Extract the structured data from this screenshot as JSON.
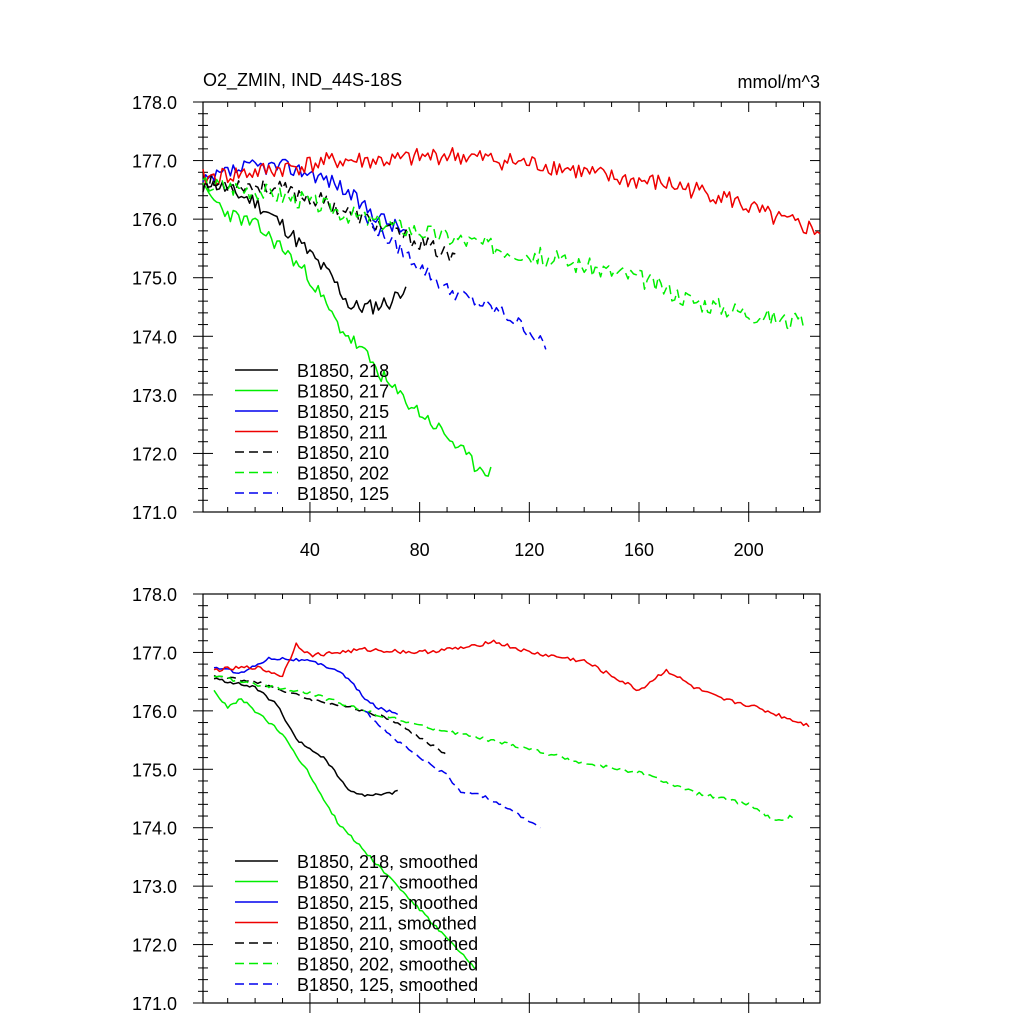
{
  "figure": {
    "title": "O2_ZMIN, IND_44S-18S",
    "units": "mmol/m^3"
  },
  "colors": {
    "black": "#000000",
    "green": "#00ee00",
    "blue": "#0000ee",
    "red": "#ee0000"
  },
  "chart_data": [
    {
      "type": "line",
      "panel": "top",
      "title": "O2_ZMIN, IND_44S-18S",
      "right_title": "mmol/m^3",
      "xlim": [
        1,
        226
      ],
      "ylim": [
        171.0,
        178.0
      ],
      "xticks": [
        40,
        80,
        120,
        160,
        200
      ],
      "xticklabels": [
        "40",
        "80",
        "120",
        "160",
        "200"
      ],
      "yticks": [
        171.0,
        172.0,
        173.0,
        174.0,
        175.0,
        176.0,
        177.0,
        178.0
      ],
      "yticklabels": [
        "171.0",
        "172.0",
        "173.0",
        "174.0",
        "175.0",
        "176.0",
        "177.0",
        "178.0"
      ],
      "legend_position": "bottom-left",
      "series": [
        {
          "name": "B1850, 218",
          "color": "#000000",
          "dash": "solid",
          "noise": 0.14,
          "seed": 11,
          "x": [
            1,
            10,
            20,
            30,
            40,
            48,
            55,
            62,
            70,
            75
          ],
          "y": [
            176.7,
            176.5,
            176.3,
            175.9,
            175.4,
            175.0,
            174.5,
            174.5,
            174.6,
            174.9
          ]
        },
        {
          "name": "B1850, 217",
          "color": "#00ee00",
          "dash": "solid",
          "noise": 0.13,
          "seed": 23,
          "x": [
            1,
            10,
            20,
            30,
            40,
            50,
            60,
            70,
            80,
            90,
            100,
            106
          ],
          "y": [
            176.5,
            176.1,
            175.9,
            175.5,
            175.0,
            174.2,
            173.7,
            173.1,
            172.7,
            172.3,
            171.8,
            171.7
          ]
        },
        {
          "name": "B1850, 215",
          "color": "#0000ee",
          "dash": "solid",
          "noise": 0.14,
          "seed": 37,
          "x": [
            1,
            10,
            20,
            30,
            40,
            50,
            60,
            70,
            75
          ],
          "y": [
            176.6,
            176.8,
            176.9,
            176.9,
            176.8,
            176.6,
            176.2,
            175.9,
            175.8
          ]
        },
        {
          "name": "B1850, 211",
          "color": "#ee0000",
          "dash": "solid",
          "noise": 0.16,
          "seed": 41,
          "x": [
            1,
            20,
            35,
            50,
            70,
            90,
            110,
            130,
            150,
            170,
            190,
            210,
            226
          ],
          "y": [
            176.7,
            176.8,
            176.9,
            177.0,
            177.0,
            177.1,
            177.0,
            176.9,
            176.7,
            176.6,
            176.4,
            176.0,
            175.8
          ]
        },
        {
          "name": "B1850, 210",
          "color": "#000000",
          "dash": "dashed",
          "noise": 0.14,
          "seed": 53,
          "x": [
            1,
            15,
            30,
            45,
            60,
            75,
            85,
            93
          ],
          "y": [
            176.6,
            176.6,
            176.5,
            176.3,
            176.0,
            175.7,
            175.5,
            175.3
          ]
        },
        {
          "name": "B1850, 202",
          "color": "#00ee00",
          "dash": "dashed",
          "noise": 0.16,
          "seed": 67,
          "x": [
            1,
            20,
            40,
            60,
            80,
            100,
            120,
            140,
            160,
            180,
            200,
            220
          ],
          "y": [
            176.6,
            176.5,
            176.3,
            176.0,
            175.8,
            175.6,
            175.4,
            175.2,
            175.0,
            174.6,
            174.4,
            174.2
          ]
        },
        {
          "name": "B1850, 125",
          "color": "#0000ee",
          "dash": "dashed",
          "noise": 0.12,
          "seed": 79,
          "x": [
            60,
            70,
            80,
            90,
            100,
            110,
            120,
            126
          ],
          "y": [
            176.0,
            175.6,
            175.2,
            174.8,
            174.6,
            174.4,
            174.1,
            173.8
          ]
        }
      ]
    },
    {
      "type": "line",
      "panel": "bottom",
      "xlim": [
        1,
        226
      ],
      "ylim": [
        171.0,
        178.0
      ],
      "xticks": [
        40,
        80,
        120,
        160,
        200
      ],
      "yticks": [
        171.0,
        172.0,
        173.0,
        174.0,
        175.0,
        176.0,
        177.0,
        178.0
      ],
      "yticklabels": [
        "171.0",
        "172.0",
        "173.0",
        "174.0",
        "175.0",
        "176.0",
        "177.0",
        "178.0"
      ],
      "legend_position": "bottom-left",
      "series": [
        {
          "name": "B1850, 218, smoothed",
          "color": "#000000",
          "dash": "solid",
          "noise": 0.025,
          "seed": 111,
          "x": [
            5,
            10,
            20,
            28,
            35,
            45,
            50,
            55,
            62,
            70,
            72
          ],
          "y": [
            176.55,
            176.5,
            176.4,
            176.1,
            175.5,
            175.2,
            174.9,
            174.6,
            174.55,
            174.6,
            174.65
          ]
        },
        {
          "name": "B1850, 217, smoothed",
          "color": "#00ee00",
          "dash": "solid",
          "noise": 0.03,
          "seed": 123,
          "x": [
            5,
            10,
            15,
            20,
            30,
            40,
            50,
            60,
            70,
            80,
            90,
            100
          ],
          "y": [
            176.35,
            176.05,
            176.2,
            176.0,
            175.6,
            174.9,
            174.1,
            173.6,
            173.1,
            172.6,
            172.1,
            171.6
          ]
        },
        {
          "name": "B1850, 215, smoothed",
          "color": "#0000ee",
          "dash": "solid",
          "noise": 0.025,
          "seed": 137,
          "x": [
            5,
            15,
            25,
            30,
            40,
            50,
            55,
            60,
            65,
            72
          ],
          "y": [
            176.75,
            176.65,
            176.9,
            176.9,
            176.85,
            176.7,
            176.5,
            176.2,
            176.05,
            175.95
          ]
        },
        {
          "name": "B1850, 211, smoothed",
          "color": "#ee0000",
          "dash": "solid",
          "noise": 0.035,
          "seed": 141,
          "x": [
            5,
            20,
            30,
            35,
            40,
            60,
            80,
            100,
            106,
            120,
            140,
            160,
            170,
            180,
            190,
            200,
            222
          ],
          "y": [
            176.7,
            176.75,
            176.6,
            177.15,
            176.95,
            177.05,
            177.0,
            177.1,
            177.2,
            177.0,
            176.85,
            176.35,
            176.7,
            176.4,
            176.2,
            176.1,
            175.75
          ]
        },
        {
          "name": "B1850, 210, smoothed",
          "color": "#000000",
          "dash": "dashed",
          "noise": 0.025,
          "seed": 153,
          "x": [
            5,
            20,
            30,
            40,
            50,
            60,
            70,
            80,
            90
          ],
          "y": [
            176.6,
            176.5,
            176.35,
            176.2,
            176.1,
            176.0,
            175.85,
            175.55,
            175.25
          ]
        },
        {
          "name": "B1850, 202, smoothed",
          "color": "#00ee00",
          "dash": "dashed",
          "noise": 0.03,
          "seed": 167,
          "x": [
            5,
            20,
            40,
            60,
            80,
            100,
            120,
            140,
            160,
            180,
            200,
            210,
            216
          ],
          "y": [
            176.6,
            176.45,
            176.3,
            176.0,
            175.75,
            175.55,
            175.35,
            175.1,
            174.95,
            174.6,
            174.4,
            174.1,
            174.2
          ]
        },
        {
          "name": "B1850, 125, smoothed",
          "color": "#0000ee",
          "dash": "dashed",
          "noise": 0.025,
          "seed": 179,
          "x": [
            60,
            70,
            80,
            90,
            95,
            100,
            110,
            124
          ],
          "y": [
            176.0,
            175.55,
            175.2,
            174.9,
            174.6,
            174.6,
            174.4,
            174.0
          ]
        }
      ]
    }
  ]
}
